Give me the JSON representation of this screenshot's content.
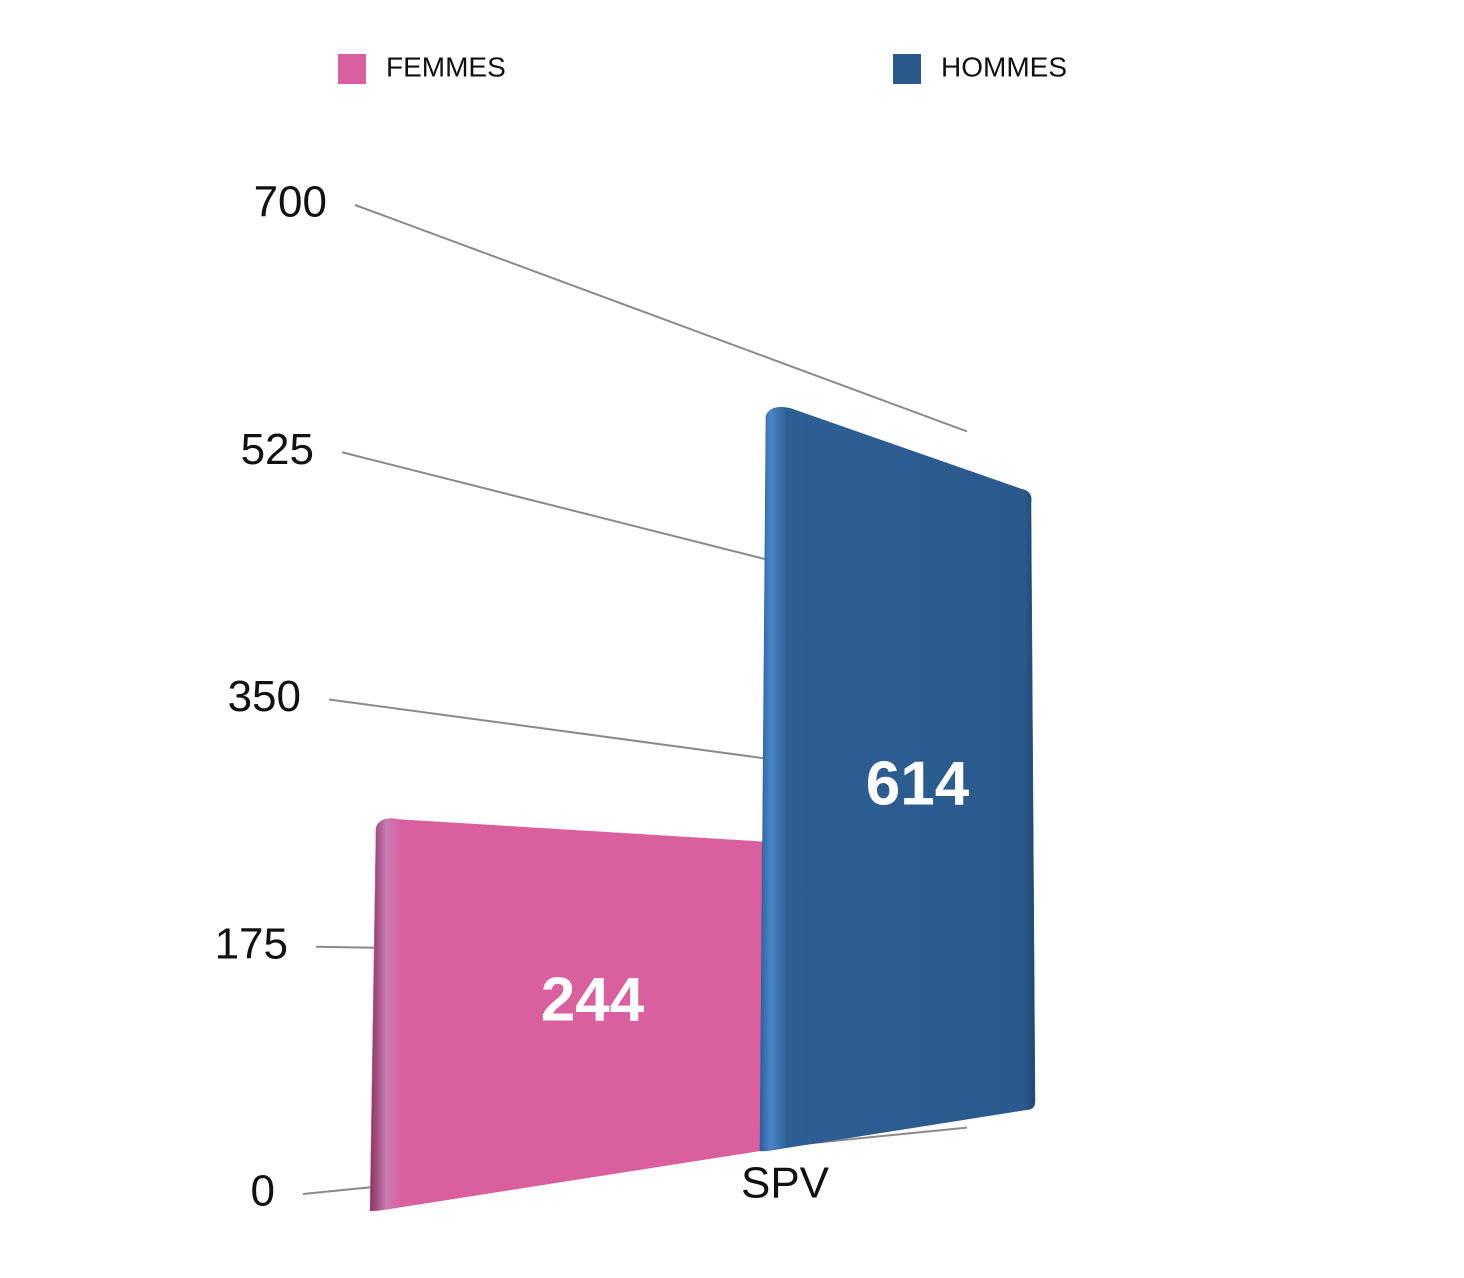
{
  "chart_data": {
    "type": "bar",
    "categories": [
      "SPV"
    ],
    "series": [
      {
        "name": "FEMMES",
        "color": "#d95f9f",
        "values": [
          244
        ]
      },
      {
        "name": "HOMMES",
        "color": "#2a5a8c",
        "values": [
          614
        ]
      }
    ],
    "ylim": [
      0,
      700
    ],
    "yticks": [
      0,
      175,
      350,
      525,
      700
    ],
    "grid": true
  }
}
